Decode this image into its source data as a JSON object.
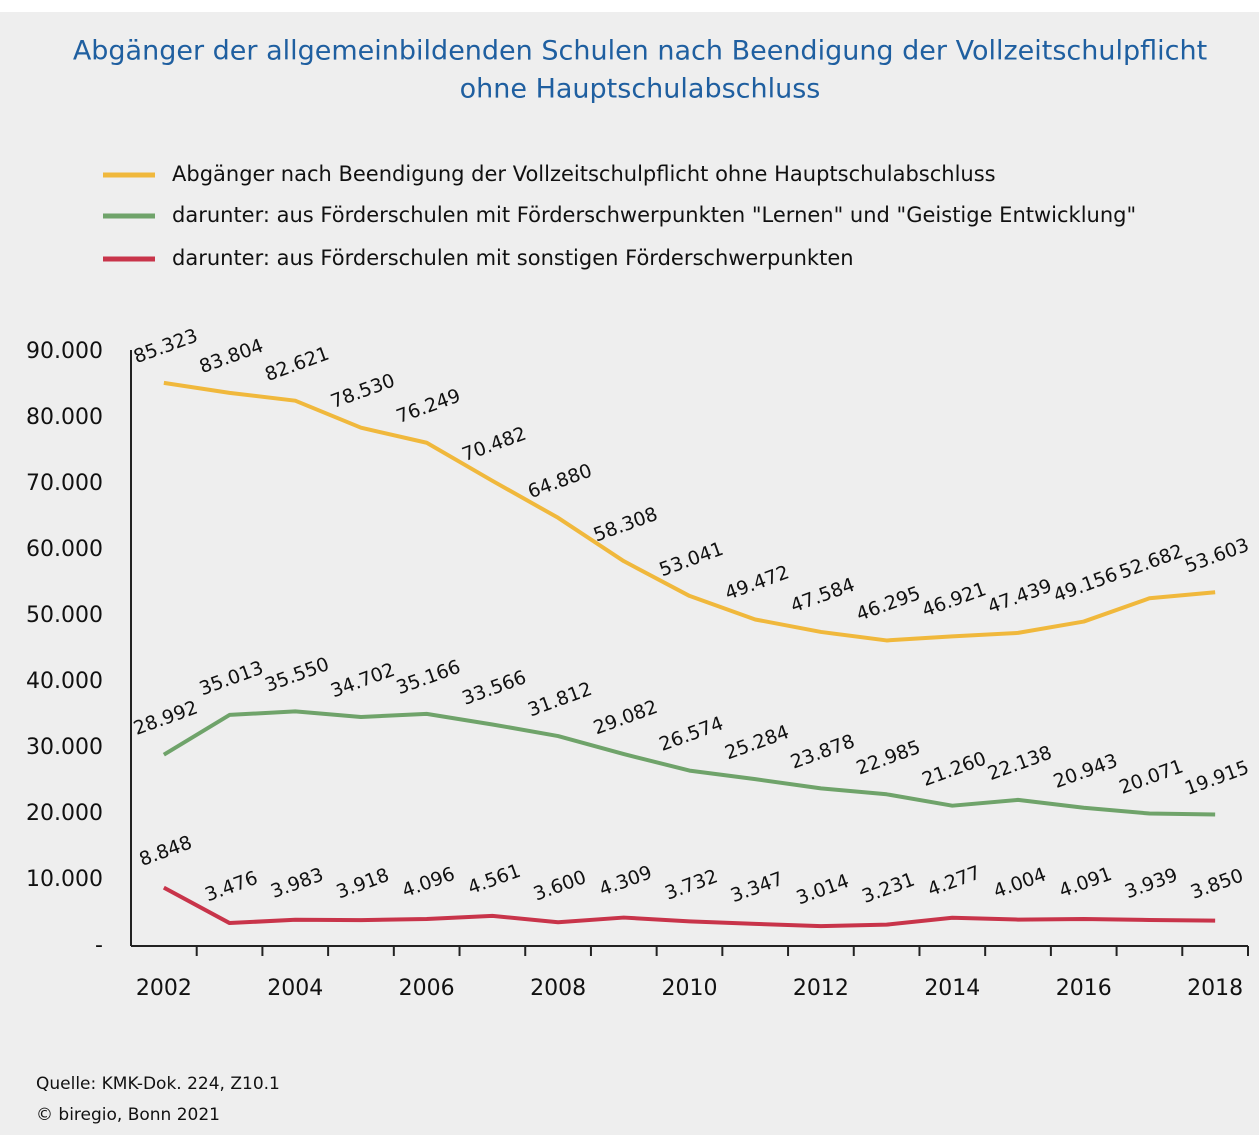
{
  "chart_data": {
    "type": "line",
    "title": [
      "Abgänger der allgemeinbildenden  Schulen nach Beendigung  der Vollzeitschulpflicht",
      "ohne Hauptschulabschluss"
    ],
    "categories": [
      "2002",
      null,
      "2004",
      null,
      "2006",
      null,
      "2008",
      null,
      "2010",
      null,
      "2012",
      null,
      "2014",
      null,
      "2016",
      null,
      "2018"
    ],
    "series": [
      {
        "name": "Abgänger nach Beendigung der Vollzeitschulpflicht ohne Hauptschulabschluss",
        "color": "#f0b83c",
        "values": [
          85323,
          83804,
          82621,
          78530,
          76249,
          70482,
          64880,
          58308,
          53041,
          49472,
          47584,
          46295,
          46921,
          47439,
          49156,
          52682,
          53603
        ],
        "value_labels": [
          "85.323",
          "83.804",
          "82.621",
          "78.530",
          "76.249",
          "70.482",
          "64.880",
          "58.308",
          "53.041",
          "49.472",
          "47.584",
          "46.295",
          "46.921",
          "47.439",
          "49.156",
          "52.682",
          "53.603"
        ]
      },
      {
        "name": "darunter:  aus Förderschulen  mit Förderschwerpunkten  \"Lernen\" und \"Geistige  Entwicklung\"",
        "color": "#6fa36a",
        "values": [
          28992,
          35013,
          35550,
          34702,
          35166,
          33566,
          31812,
          29082,
          26574,
          25284,
          23878,
          22985,
          21260,
          22138,
          20943,
          20071,
          19915
        ],
        "value_labels": [
          "28.992",
          "35.013",
          "35.550",
          "34.702",
          "35.166",
          "33.566",
          "31.812",
          "29.082",
          "26.574",
          "25.284",
          "23.878",
          "22.985",
          "21.260",
          "22.138",
          "20.943",
          "20.071",
          "19.915"
        ]
      },
      {
        "name": "darunter: aus Förderschulen mit sonstigen Förderschwerpunkten",
        "color": "#c8344a",
        "values": [
          8848,
          3476,
          3983,
          3918,
          4096,
          4561,
          3600,
          4309,
          3732,
          3347,
          3014,
          3231,
          4277,
          4004,
          4091,
          3939,
          3850
        ],
        "value_labels": [
          "8.848",
          "3.476",
          "3.983",
          "3.918",
          "4.096",
          "4.561",
          "3.600",
          "4.309",
          "3.732",
          "3.347",
          "3.014",
          "3.231",
          "4.277",
          "4.004",
          "4.091",
          "3.939",
          "3.850"
        ]
      }
    ],
    "ylim": [
      0,
      90000
    ],
    "yticks": [
      {
        "value": 0,
        "label": "-"
      },
      {
        "value": 10000,
        "label": "10.000"
      },
      {
        "value": 20000,
        "label": "20.000"
      },
      {
        "value": 30000,
        "label": "30.000"
      },
      {
        "value": 40000,
        "label": "40.000"
      },
      {
        "value": 50000,
        "label": "50.000"
      },
      {
        "value": 60000,
        "label": "60.000"
      },
      {
        "value": 70000,
        "label": "70.000"
      },
      {
        "value": 80000,
        "label": "80.000"
      },
      {
        "value": 90000,
        "label": "90.000"
      }
    ],
    "grid": false,
    "notes": [
      "Quelle: KMK-Dok. 224, Z10.1",
      "© biregio, Bonn 2021"
    ]
  }
}
